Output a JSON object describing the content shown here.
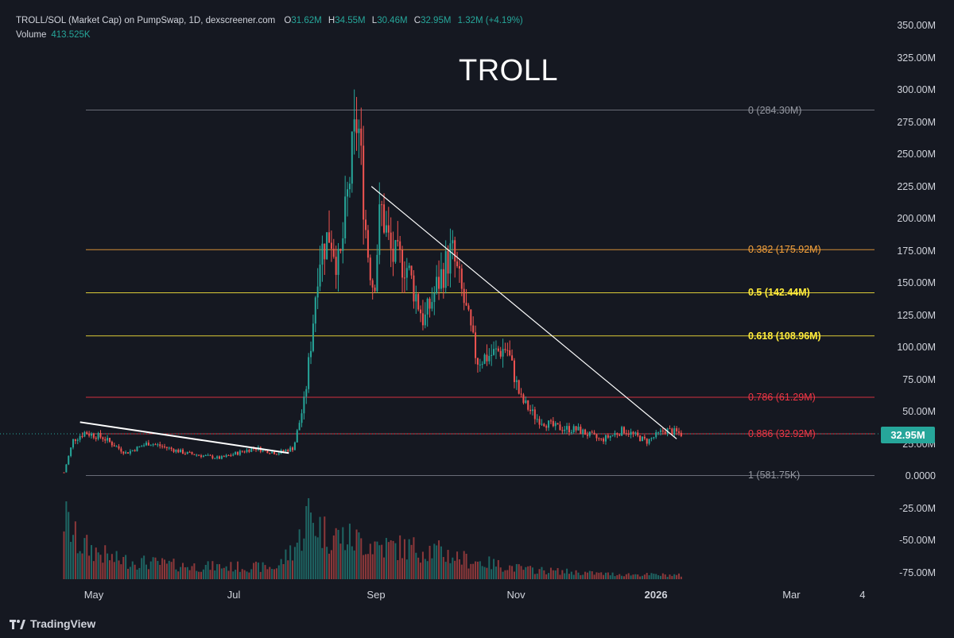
{
  "legend": {
    "symbol": "TROLL/SOL (Market Cap) on PumpSwap, 1D, dexscreener.com",
    "o_label": "O",
    "o_value": "31.62M",
    "h_label": "H",
    "h_value": "34.55M",
    "l_label": "L",
    "l_value": "30.46M",
    "c_label": "C",
    "c_value": "32.95M",
    "change": "1.32M (+4.19%)",
    "volume_label": "Volume",
    "volume_value": "413.525K"
  },
  "footer": {
    "brand": "TradingView"
  },
  "colors": {
    "background": "#151821",
    "up": "#26a69a",
    "down": "#ef5350",
    "fib_0": "#787b86",
    "fib_0382": "#f7a33c",
    "fib_05": "#ffeb3b",
    "fib_0618": "#ffeb3b",
    "fib_0786": "#f23645",
    "fib_0886": "#f23645"
  },
  "chart_data": {
    "type": "candlestick",
    "title": "TROLL",
    "xlabel": "",
    "ylabel": "",
    "ylim": [
      -75000000,
      350000000
    ],
    "y_ticks": [
      "350.00M",
      "325.00M",
      "300.00M",
      "275.00M",
      "250.00M",
      "225.00M",
      "200.00M",
      "175.00M",
      "150.00M",
      "125.00M",
      "100.00M",
      "75.00M",
      "50.00M",
      "25.00M",
      "0.0000",
      "-25.00M",
      "-50.00M",
      "-75.00M"
    ],
    "x_ticks": [
      {
        "label": "May",
        "bold": false
      },
      {
        "label": "Jul",
        "bold": false
      },
      {
        "label": "Sep",
        "bold": false
      },
      {
        "label": "Nov",
        "bold": false
      },
      {
        "label": "2026",
        "bold": true
      },
      {
        "label": "Mar",
        "bold": false
      },
      {
        "label": "4",
        "bold": false
      }
    ],
    "fib_levels": [
      {
        "label": "0 (284.30M)",
        "value": 284300000,
        "color": "#787b86",
        "bold": false
      },
      {
        "label": "0.382 (175.92M)",
        "value": 175920000,
        "color": "#f7a33c",
        "bold": false
      },
      {
        "label": "0.5 (142.44M)",
        "value": 142440000,
        "color": "#ffeb3b",
        "bold": true
      },
      {
        "label": "0.618 (108.96M)",
        "value": 108960000,
        "color": "#ffeb3b",
        "bold": true
      },
      {
        "label": "0.786 (61.29M)",
        "value": 61290000,
        "color": "#f23645",
        "bold": false
      },
      {
        "label": "0.886 (32.92M)",
        "value": 32920000,
        "color": "#f23645",
        "bold": false
      },
      {
        "label": "1 (581.75K)",
        "value": 581750,
        "color": "#787b86",
        "bold": false
      }
    ],
    "last_price": "32.95M",
    "last_price_value": 32950000,
    "trendlines": [
      {
        "from": {
          "date": "2025-04-25",
          "value": 42000000
        },
        "to": {
          "date": "2025-07-25",
          "value": 18000000
        }
      },
      {
        "from": {
          "date": "2025-08-30",
          "value": 225000000
        },
        "to": {
          "date": "2026-01-10",
          "value": 29000000
        }
      }
    ],
    "close_path": [
      {
        "date": "2025-04-18",
        "value": 3000000
      },
      {
        "date": "2025-04-22",
        "value": 28000000
      },
      {
        "date": "2025-04-27",
        "value": 34000000
      },
      {
        "date": "2025-05-05",
        "value": 30000000
      },
      {
        "date": "2025-05-15",
        "value": 18000000
      },
      {
        "date": "2025-05-25",
        "value": 26000000
      },
      {
        "date": "2025-06-10",
        "value": 18000000
      },
      {
        "date": "2025-06-25",
        "value": 14000000
      },
      {
        "date": "2025-07-10",
        "value": 22000000
      },
      {
        "date": "2025-07-20",
        "value": 18000000
      },
      {
        "date": "2025-07-27",
        "value": 22000000
      },
      {
        "date": "2025-08-01",
        "value": 60000000
      },
      {
        "date": "2025-08-04",
        "value": 110000000
      },
      {
        "date": "2025-08-07",
        "value": 170000000
      },
      {
        "date": "2025-08-12",
        "value": 190000000
      },
      {
        "date": "2025-08-16",
        "value": 160000000
      },
      {
        "date": "2025-08-22",
        "value": 255000000
      },
      {
        "date": "2025-08-24",
        "value": 280000000
      },
      {
        "date": "2025-08-28",
        "value": 180000000
      },
      {
        "date": "2025-08-31",
        "value": 145000000
      },
      {
        "date": "2025-09-03",
        "value": 210000000
      },
      {
        "date": "2025-09-08",
        "value": 170000000
      },
      {
        "date": "2025-09-14",
        "value": 165000000
      },
      {
        "date": "2025-09-22",
        "value": 120000000
      },
      {
        "date": "2025-09-28",
        "value": 150000000
      },
      {
        "date": "2025-10-04",
        "value": 175000000
      },
      {
        "date": "2025-10-10",
        "value": 130000000
      },
      {
        "date": "2025-10-15",
        "value": 90000000
      },
      {
        "date": "2025-10-22",
        "value": 95000000
      },
      {
        "date": "2025-10-28",
        "value": 100000000
      },
      {
        "date": "2025-11-03",
        "value": 60000000
      },
      {
        "date": "2025-11-10",
        "value": 45000000
      },
      {
        "date": "2025-11-18",
        "value": 38000000
      },
      {
        "date": "2025-11-28",
        "value": 36000000
      },
      {
        "date": "2025-12-08",
        "value": 28000000
      },
      {
        "date": "2025-12-18",
        "value": 36000000
      },
      {
        "date": "2025-12-28",
        "value": 27000000
      },
      {
        "date": "2026-01-05",
        "value": 36000000
      },
      {
        "date": "2026-01-12",
        "value": 33000000
      }
    ],
    "volume_profile": [
      {
        "date": "2025-04-18",
        "relative": 0.95
      },
      {
        "date": "2025-04-24",
        "relative": 0.55
      },
      {
        "date": "2025-05-10",
        "relative": 0.3
      },
      {
        "date": "2025-06-10",
        "relative": 0.2
      },
      {
        "date": "2025-07-20",
        "relative": 0.18
      },
      {
        "date": "2025-07-30",
        "relative": 0.62
      },
      {
        "date": "2025-08-02",
        "relative": 1.0
      },
      {
        "date": "2025-08-10",
        "relative": 0.7
      },
      {
        "date": "2025-08-22",
        "relative": 0.6
      },
      {
        "date": "2025-09-05",
        "relative": 0.5
      },
      {
        "date": "2025-09-25",
        "relative": 0.45
      },
      {
        "date": "2025-10-10",
        "relative": 0.3
      },
      {
        "date": "2025-11-05",
        "relative": 0.15
      },
      {
        "date": "2025-12-10",
        "relative": 0.08
      },
      {
        "date": "2026-01-12",
        "relative": 0.06
      }
    ]
  }
}
